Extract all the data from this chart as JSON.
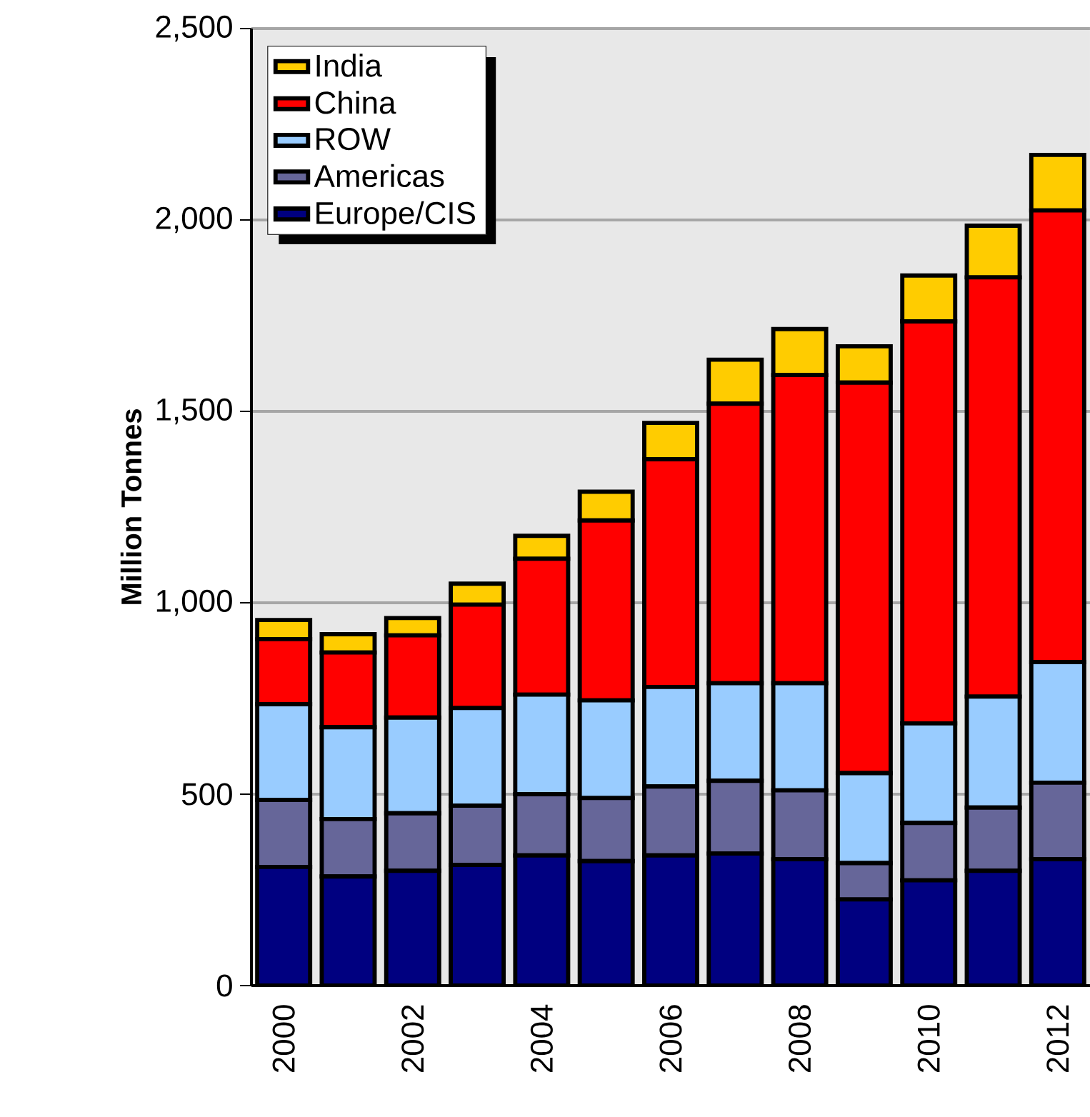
{
  "chart_data": {
    "type": "bar",
    "stacked": true,
    "ylabel": "Million Tonnes",
    "categories": [
      "2000",
      null,
      "2002",
      null,
      "2004",
      null,
      "2006",
      null,
      "2008",
      null,
      "2010",
      null,
      "2012"
    ],
    "series": [
      {
        "name": "Europe/CIS",
        "color": "#000080",
        "values": [
          310,
          285,
          300,
          315,
          340,
          325,
          340,
          345,
          330,
          225,
          275,
          300,
          330
        ]
      },
      {
        "name": "Americas",
        "color": "#666699",
        "values": [
          175,
          150,
          150,
          155,
          160,
          165,
          180,
          190,
          180,
          95,
          150,
          165,
          200
        ]
      },
      {
        "name": "ROW",
        "color": "#99ccff",
        "values": [
          250,
          240,
          250,
          255,
          260,
          255,
          260,
          255,
          280,
          235,
          260,
          290,
          315
        ]
      },
      {
        "name": "China",
        "color": "#ff0000",
        "values": [
          170,
          195,
          215,
          270,
          355,
          470,
          595,
          730,
          805,
          1020,
          1050,
          1095,
          1180
        ]
      },
      {
        "name": "India",
        "color": "#ffcc00",
        "values": [
          50,
          48,
          45,
          55,
          60,
          75,
          95,
          115,
          120,
          95,
          120,
          135,
          145
        ]
      }
    ],
    "ylim": [
      0,
      2500
    ],
    "yticks": [
      0,
      500,
      {
        "value": 1000,
        "label": "1,000"
      },
      {
        "value": 1500,
        "label": "1,500"
      },
      {
        "value": 2000,
        "label": "2,000"
      },
      {
        "value": 2500,
        "label": "2,500"
      }
    ],
    "grid": "y",
    "legend": "top left"
  }
}
